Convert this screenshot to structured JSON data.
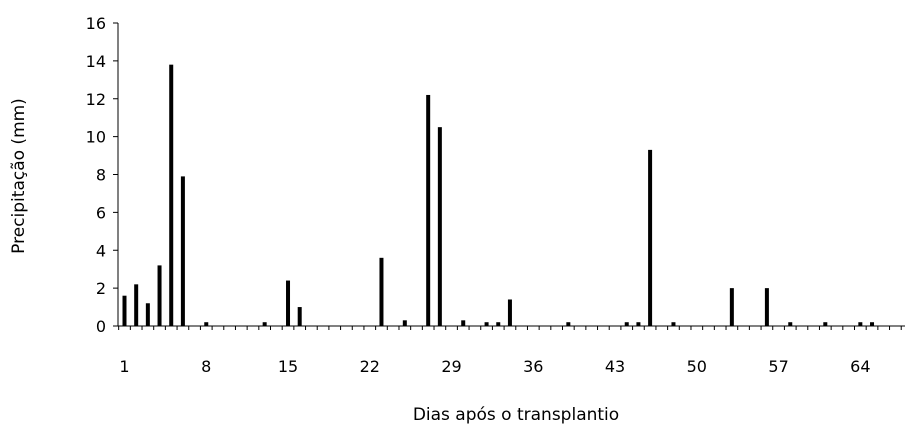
{
  "chart_data": {
    "type": "bar",
    "xlabel": "Dias após o transplantio",
    "ylabel": "Precipitação (mm)",
    "ylim": [
      0,
      16
    ],
    "y_ticks": [
      "0",
      "2",
      "4",
      "6",
      "8",
      "10",
      "12",
      "14",
      "16"
    ],
    "x_range": [
      1,
      70
    ],
    "x_ticks": [
      "1",
      "8",
      "15",
      "22",
      "29",
      "36",
      "43",
      "50",
      "57",
      "64"
    ],
    "grid": false,
    "bar_color": "#000000",
    "x": [
      1,
      2,
      3,
      4,
      5,
      6,
      8,
      13,
      15,
      16,
      23,
      25,
      27,
      28,
      30,
      32,
      33,
      34,
      39,
      44,
      45,
      46,
      48,
      53,
      56,
      58,
      61,
      64,
      65
    ],
    "values": [
      1.6,
      2.2,
      1.2,
      3.2,
      13.8,
      7.9,
      0.2,
      0.2,
      2.4,
      1.0,
      3.6,
      0.3,
      12.2,
      10.5,
      0.3,
      0.2,
      0.2,
      1.4,
      0.2,
      0.2,
      0.2,
      9.3,
      0.2,
      2.0,
      2.0,
      0.2,
      0.2,
      0.2,
      0.2
    ]
  }
}
